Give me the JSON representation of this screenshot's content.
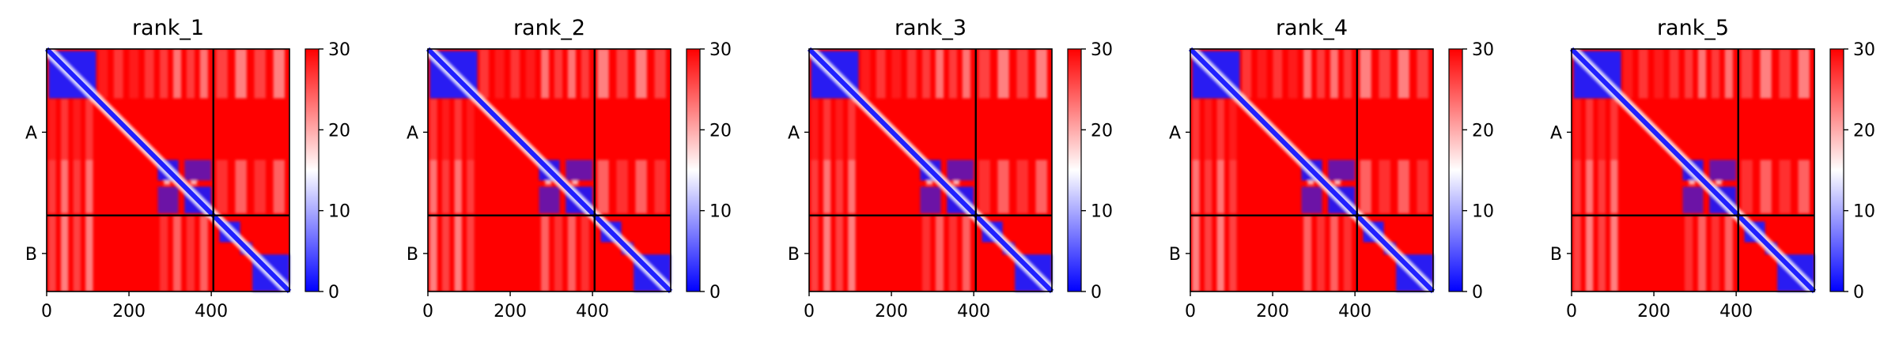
{
  "chart_data": [
    {
      "type": "heatmap",
      "title": "rank_1",
      "xticks": [
        "0",
        "200",
        "400"
      ],
      "xtick_values": [
        0,
        200,
        400
      ],
      "yticks": [
        "A",
        "B"
      ],
      "chains": [
        {
          "name": "A",
          "start": 0,
          "end": 405
        },
        {
          "name": "B",
          "start": 405,
          "end": 590
        }
      ],
      "xlim": [
        0,
        590
      ],
      "colorbar": {
        "min": 0,
        "max": 30,
        "ticks": [
          "0",
          "10",
          "20",
          "30"
        ],
        "colors": [
          "#0000ff",
          "#ffffff",
          "#ff0000"
        ]
      }
    },
    {
      "type": "heatmap",
      "title": "rank_2",
      "xticks": [
        "0",
        "200",
        "400"
      ],
      "xtick_values": [
        0,
        200,
        400
      ],
      "yticks": [
        "A",
        "B"
      ],
      "chains": [
        {
          "name": "A",
          "start": 0,
          "end": 405
        },
        {
          "name": "B",
          "start": 405,
          "end": 590
        }
      ],
      "xlim": [
        0,
        590
      ],
      "colorbar": {
        "min": 0,
        "max": 30,
        "ticks": [
          "0",
          "10",
          "20",
          "30"
        ],
        "colors": [
          "#0000ff",
          "#ffffff",
          "#ff0000"
        ]
      }
    },
    {
      "type": "heatmap",
      "title": "rank_3",
      "xticks": [
        "0",
        "200",
        "400"
      ],
      "xtick_values": [
        0,
        200,
        400
      ],
      "yticks": [
        "A",
        "B"
      ],
      "chains": [
        {
          "name": "A",
          "start": 0,
          "end": 405
        },
        {
          "name": "B",
          "start": 405,
          "end": 590
        }
      ],
      "xlim": [
        0,
        590
      ],
      "colorbar": {
        "min": 0,
        "max": 30,
        "ticks": [
          "0",
          "10",
          "20",
          "30"
        ],
        "colors": [
          "#0000ff",
          "#ffffff",
          "#ff0000"
        ]
      }
    },
    {
      "type": "heatmap",
      "title": "rank_4",
      "xticks": [
        "0",
        "200",
        "400"
      ],
      "xtick_values": [
        0,
        200,
        400
      ],
      "yticks": [
        "A",
        "B"
      ],
      "chains": [
        {
          "name": "A",
          "start": 0,
          "end": 405
        },
        {
          "name": "B",
          "start": 405,
          "end": 590
        }
      ],
      "xlim": [
        0,
        590
      ],
      "colorbar": {
        "min": 0,
        "max": 30,
        "ticks": [
          "0",
          "10",
          "20",
          "30"
        ],
        "colors": [
          "#0000ff",
          "#ffffff",
          "#ff0000"
        ]
      }
    },
    {
      "type": "heatmap",
      "title": "rank_5",
      "xticks": [
        "0",
        "200",
        "400"
      ],
      "xtick_values": [
        0,
        200,
        400
      ],
      "yticks": [
        "A",
        "B"
      ],
      "chains": [
        {
          "name": "A",
          "start": 0,
          "end": 405
        },
        {
          "name": "B",
          "start": 405,
          "end": 590
        }
      ],
      "xlim": [
        0,
        590
      ],
      "colorbar": {
        "min": 0,
        "max": 30,
        "ticks": [
          "0",
          "10",
          "20",
          "30"
        ],
        "colors": [
          "#0000ff",
          "#ffffff",
          "#ff0000"
        ]
      }
    }
  ]
}
